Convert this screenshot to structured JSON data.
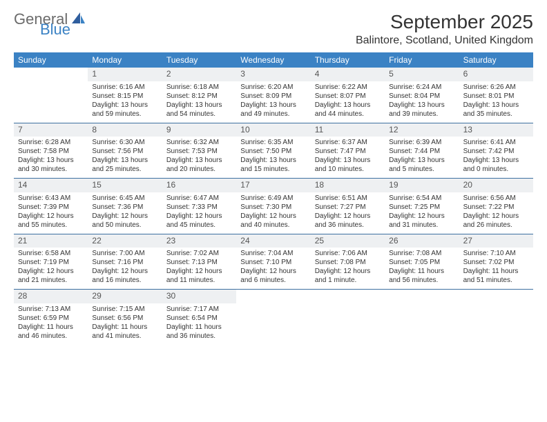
{
  "logo": {
    "text1": "General",
    "text2": "Blue"
  },
  "title": "September 2025",
  "location": "Balintore, Scotland, United Kingdom",
  "colors": {
    "header_bg": "#3b82c4",
    "header_text": "#ffffff",
    "daynum_bg": "#eef0f2",
    "rule": "#3b6fa0",
    "logo_gray": "#6b6b6b",
    "logo_blue": "#3b82c4"
  },
  "day_labels": [
    "Sunday",
    "Monday",
    "Tuesday",
    "Wednesday",
    "Thursday",
    "Friday",
    "Saturday"
  ],
  "weeks": [
    [
      {
        "n": "",
        "sr": "",
        "ss": "",
        "dl": ""
      },
      {
        "n": "1",
        "sr": "Sunrise: 6:16 AM",
        "ss": "Sunset: 8:15 PM",
        "dl": "Daylight: 13 hours and 59 minutes."
      },
      {
        "n": "2",
        "sr": "Sunrise: 6:18 AM",
        "ss": "Sunset: 8:12 PM",
        "dl": "Daylight: 13 hours and 54 minutes."
      },
      {
        "n": "3",
        "sr": "Sunrise: 6:20 AM",
        "ss": "Sunset: 8:09 PM",
        "dl": "Daylight: 13 hours and 49 minutes."
      },
      {
        "n": "4",
        "sr": "Sunrise: 6:22 AM",
        "ss": "Sunset: 8:07 PM",
        "dl": "Daylight: 13 hours and 44 minutes."
      },
      {
        "n": "5",
        "sr": "Sunrise: 6:24 AM",
        "ss": "Sunset: 8:04 PM",
        "dl": "Daylight: 13 hours and 39 minutes."
      },
      {
        "n": "6",
        "sr": "Sunrise: 6:26 AM",
        "ss": "Sunset: 8:01 PM",
        "dl": "Daylight: 13 hours and 35 minutes."
      }
    ],
    [
      {
        "n": "7",
        "sr": "Sunrise: 6:28 AM",
        "ss": "Sunset: 7:58 PM",
        "dl": "Daylight: 13 hours and 30 minutes."
      },
      {
        "n": "8",
        "sr": "Sunrise: 6:30 AM",
        "ss": "Sunset: 7:56 PM",
        "dl": "Daylight: 13 hours and 25 minutes."
      },
      {
        "n": "9",
        "sr": "Sunrise: 6:32 AM",
        "ss": "Sunset: 7:53 PM",
        "dl": "Daylight: 13 hours and 20 minutes."
      },
      {
        "n": "10",
        "sr": "Sunrise: 6:35 AM",
        "ss": "Sunset: 7:50 PM",
        "dl": "Daylight: 13 hours and 15 minutes."
      },
      {
        "n": "11",
        "sr": "Sunrise: 6:37 AM",
        "ss": "Sunset: 7:47 PM",
        "dl": "Daylight: 13 hours and 10 minutes."
      },
      {
        "n": "12",
        "sr": "Sunrise: 6:39 AM",
        "ss": "Sunset: 7:44 PM",
        "dl": "Daylight: 13 hours and 5 minutes."
      },
      {
        "n": "13",
        "sr": "Sunrise: 6:41 AM",
        "ss": "Sunset: 7:42 PM",
        "dl": "Daylight: 13 hours and 0 minutes."
      }
    ],
    [
      {
        "n": "14",
        "sr": "Sunrise: 6:43 AM",
        "ss": "Sunset: 7:39 PM",
        "dl": "Daylight: 12 hours and 55 minutes."
      },
      {
        "n": "15",
        "sr": "Sunrise: 6:45 AM",
        "ss": "Sunset: 7:36 PM",
        "dl": "Daylight: 12 hours and 50 minutes."
      },
      {
        "n": "16",
        "sr": "Sunrise: 6:47 AM",
        "ss": "Sunset: 7:33 PM",
        "dl": "Daylight: 12 hours and 45 minutes."
      },
      {
        "n": "17",
        "sr": "Sunrise: 6:49 AM",
        "ss": "Sunset: 7:30 PM",
        "dl": "Daylight: 12 hours and 40 minutes."
      },
      {
        "n": "18",
        "sr": "Sunrise: 6:51 AM",
        "ss": "Sunset: 7:27 PM",
        "dl": "Daylight: 12 hours and 36 minutes."
      },
      {
        "n": "19",
        "sr": "Sunrise: 6:54 AM",
        "ss": "Sunset: 7:25 PM",
        "dl": "Daylight: 12 hours and 31 minutes."
      },
      {
        "n": "20",
        "sr": "Sunrise: 6:56 AM",
        "ss": "Sunset: 7:22 PM",
        "dl": "Daylight: 12 hours and 26 minutes."
      }
    ],
    [
      {
        "n": "21",
        "sr": "Sunrise: 6:58 AM",
        "ss": "Sunset: 7:19 PM",
        "dl": "Daylight: 12 hours and 21 minutes."
      },
      {
        "n": "22",
        "sr": "Sunrise: 7:00 AM",
        "ss": "Sunset: 7:16 PM",
        "dl": "Daylight: 12 hours and 16 minutes."
      },
      {
        "n": "23",
        "sr": "Sunrise: 7:02 AM",
        "ss": "Sunset: 7:13 PM",
        "dl": "Daylight: 12 hours and 11 minutes."
      },
      {
        "n": "24",
        "sr": "Sunrise: 7:04 AM",
        "ss": "Sunset: 7:10 PM",
        "dl": "Daylight: 12 hours and 6 minutes."
      },
      {
        "n": "25",
        "sr": "Sunrise: 7:06 AM",
        "ss": "Sunset: 7:08 PM",
        "dl": "Daylight: 12 hours and 1 minute."
      },
      {
        "n": "26",
        "sr": "Sunrise: 7:08 AM",
        "ss": "Sunset: 7:05 PM",
        "dl": "Daylight: 11 hours and 56 minutes."
      },
      {
        "n": "27",
        "sr": "Sunrise: 7:10 AM",
        "ss": "Sunset: 7:02 PM",
        "dl": "Daylight: 11 hours and 51 minutes."
      }
    ],
    [
      {
        "n": "28",
        "sr": "Sunrise: 7:13 AM",
        "ss": "Sunset: 6:59 PM",
        "dl": "Daylight: 11 hours and 46 minutes."
      },
      {
        "n": "29",
        "sr": "Sunrise: 7:15 AM",
        "ss": "Sunset: 6:56 PM",
        "dl": "Daylight: 11 hours and 41 minutes."
      },
      {
        "n": "30",
        "sr": "Sunrise: 7:17 AM",
        "ss": "Sunset: 6:54 PM",
        "dl": "Daylight: 11 hours and 36 minutes."
      },
      {
        "n": "",
        "sr": "",
        "ss": "",
        "dl": ""
      },
      {
        "n": "",
        "sr": "",
        "ss": "",
        "dl": ""
      },
      {
        "n": "",
        "sr": "",
        "ss": "",
        "dl": ""
      },
      {
        "n": "",
        "sr": "",
        "ss": "",
        "dl": ""
      }
    ]
  ]
}
